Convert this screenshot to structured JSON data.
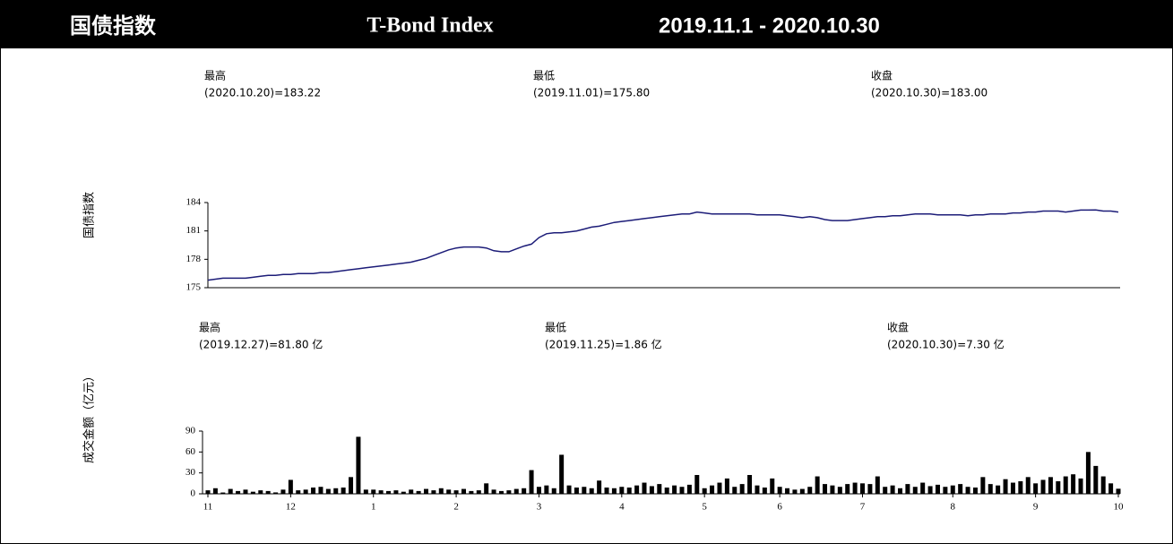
{
  "header": {
    "title_cn": "国债指数",
    "title_en": "T-Bond Index",
    "period": "2019.11.1 - 2020.10.30"
  },
  "chart_data": [
    {
      "type": "line",
      "y_label": "国债指数",
      "color": "#1c1c78",
      "stats": [
        {
          "label": "最高",
          "value": "(2020.10.20)=183.22"
        },
        {
          "label": "最低",
          "value": "(2019.11.01)=175.80"
        },
        {
          "label": "收盘",
          "value": "(2020.10.30)=183.00"
        }
      ],
      "ylim": [
        175,
        184
      ],
      "yticks": [
        175,
        178,
        181,
        184
      ],
      "values": [
        175.8,
        175.9,
        176.0,
        176.0,
        176.0,
        176.0,
        176.1,
        176.2,
        176.3,
        176.3,
        176.4,
        176.4,
        176.5,
        176.5,
        176.5,
        176.6,
        176.6,
        176.7,
        176.8,
        176.9,
        177.0,
        177.1,
        177.2,
        177.3,
        177.4,
        177.5,
        177.6,
        177.7,
        177.9,
        178.1,
        178.4,
        178.7,
        179.0,
        179.2,
        179.3,
        179.3,
        179.3,
        179.2,
        178.9,
        178.8,
        178.8,
        179.1,
        179.4,
        179.6,
        180.3,
        180.7,
        180.8,
        180.8,
        180.9,
        181.0,
        181.2,
        181.4,
        181.5,
        181.7,
        181.9,
        182.0,
        182.1,
        182.2,
        182.3,
        182.4,
        182.5,
        182.6,
        182.7,
        182.8,
        182.8,
        183.0,
        182.9,
        182.8,
        182.8,
        182.8,
        182.8,
        182.8,
        182.8,
        182.7,
        182.7,
        182.7,
        182.7,
        182.6,
        182.5,
        182.4,
        182.5,
        182.4,
        182.2,
        182.1,
        182.1,
        182.1,
        182.2,
        182.3,
        182.4,
        182.5,
        182.5,
        182.6,
        182.6,
        182.7,
        182.8,
        182.8,
        182.8,
        182.7,
        182.7,
        182.7,
        182.7,
        182.6,
        182.7,
        182.7,
        182.8,
        182.8,
        182.8,
        182.9,
        182.9,
        183.0,
        183.0,
        183.1,
        183.1,
        183.1,
        183.0,
        183.1,
        183.2,
        183.2,
        183.22,
        183.1,
        183.1,
        183.0
      ]
    },
    {
      "type": "bar",
      "y_label": "成交金额（亿元）",
      "color": "#000000",
      "stats": [
        {
          "label": "最高",
          "value": "(2019.12.27)=81.80 亿"
        },
        {
          "label": "最低",
          "value": "(2019.11.25)=1.86 亿"
        },
        {
          "label": "收盘",
          "value": "(2020.10.30)=7.30 亿"
        }
      ],
      "ylim": [
        0,
        90
      ],
      "yticks": [
        0,
        30,
        60,
        90
      ],
      "categories": [
        "11",
        null,
        null,
        null,
        null,
        null,
        null,
        null,
        null,
        null,
        null,
        "12",
        null,
        null,
        null,
        null,
        null,
        null,
        null,
        null,
        null,
        null,
        "1",
        null,
        null,
        null,
        null,
        null,
        null,
        null,
        null,
        null,
        null,
        "2",
        null,
        null,
        null,
        null,
        null,
        null,
        null,
        null,
        null,
        null,
        "3",
        null,
        null,
        null,
        null,
        null,
        null,
        null,
        null,
        null,
        null,
        "4",
        null,
        null,
        null,
        null,
        null,
        null,
        null,
        null,
        null,
        null,
        "5",
        null,
        null,
        null,
        null,
        null,
        null,
        null,
        null,
        null,
        "6",
        null,
        null,
        null,
        null,
        null,
        null,
        null,
        null,
        null,
        null,
        "7",
        null,
        null,
        null,
        null,
        null,
        null,
        null,
        null,
        null,
        null,
        null,
        "8",
        null,
        null,
        null,
        null,
        null,
        null,
        null,
        null,
        null,
        null,
        "9",
        null,
        null,
        null,
        null,
        null,
        null,
        null,
        null,
        null,
        null,
        "10"
      ],
      "values": [
        5,
        8,
        1.86,
        7,
        4,
        6,
        3,
        5,
        4,
        2,
        6,
        20,
        5,
        6,
        9,
        10,
        7,
        8,
        9,
        24,
        81.8,
        6,
        6,
        5,
        4,
        5,
        3,
        6,
        4,
        7,
        5,
        8,
        6,
        5,
        7,
        4,
        5,
        15,
        6,
        4,
        5,
        7,
        8,
        34,
        10,
        12,
        8,
        56,
        12,
        9,
        10,
        8,
        19,
        9,
        8,
        10,
        9,
        12,
        16,
        11,
        14,
        9,
        12,
        10,
        13,
        27,
        8,
        12,
        16,
        22,
        10,
        14,
        27,
        12,
        9,
        22,
        10,
        8,
        6,
        7,
        10,
        25,
        14,
        12,
        10,
        14,
        16,
        15,
        14,
        25,
        10,
        12,
        8,
        14,
        10,
        16,
        11,
        13,
        10,
        12,
        14,
        10,
        9,
        24,
        14,
        12,
        21,
        16,
        18,
        24,
        15,
        20,
        24,
        18,
        25,
        28,
        22,
        60,
        40,
        25,
        15,
        7.3
      ]
    }
  ]
}
